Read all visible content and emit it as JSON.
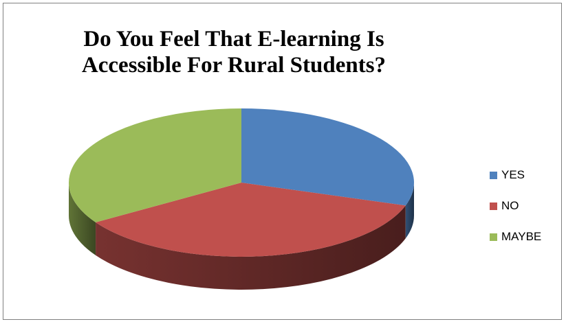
{
  "chart_data": {
    "type": "pie",
    "style": "3d",
    "title_lines": [
      "Do You Feel That E-learning Is",
      "Accessible For Rural Students?"
    ],
    "categories": [
      "YES",
      "NO",
      "MAYBE"
    ],
    "values": [
      30,
      36,
      34
    ],
    "colors": {
      "YES": "#4f81bd",
      "NO": "#c0504d",
      "MAYBE": "#9bbb59"
    },
    "legend_placement": "right"
  }
}
